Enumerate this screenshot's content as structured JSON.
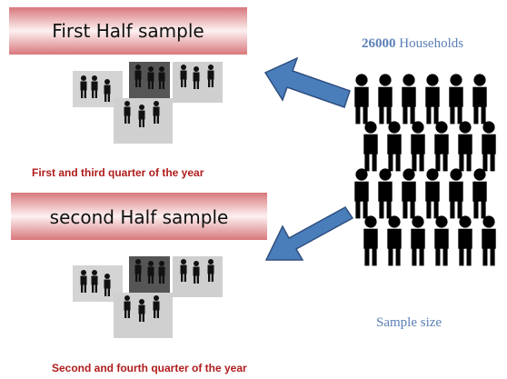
{
  "banners": [
    {
      "title": "First Half sample",
      "caption": "First and third quarter of the year"
    },
    {
      "title": "second Half sample",
      "caption": "Second and fourth quarter of the year"
    }
  ],
  "population": {
    "count": 26000,
    "unit": "Households",
    "label": "Sample size"
  }
}
